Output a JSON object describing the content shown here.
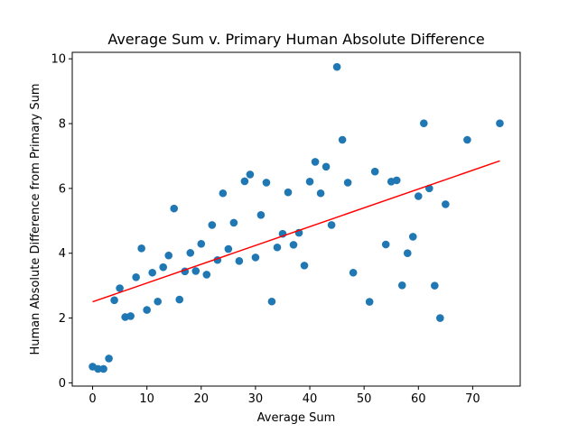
{
  "chart_data": {
    "type": "scatter",
    "title": "Average Sum v. Primary Human Absolute Difference",
    "xlabel": "Average Sum",
    "ylabel": "Human Absolute Difference from Primary Sum",
    "xlim": [
      -3.75,
      78.75
    ],
    "ylim": [
      -0.1,
      10.2
    ],
    "xticks": [
      0,
      10,
      20,
      30,
      40,
      50,
      60,
      70
    ],
    "yticks": [
      0,
      2,
      4,
      6,
      8,
      10
    ],
    "grid": false,
    "legend": "none",
    "series": [
      {
        "color": "#1f77b4",
        "points": [
          [
            0,
            0.5
          ],
          [
            1,
            0.43
          ],
          [
            2,
            0.43
          ],
          [
            3,
            0.75
          ],
          [
            4,
            2.55
          ],
          [
            5,
            2.92
          ],
          [
            6,
            2.03
          ],
          [
            7,
            2.06
          ],
          [
            8,
            3.26
          ],
          [
            9,
            4.15
          ],
          [
            10,
            2.25
          ],
          [
            11,
            3.4
          ],
          [
            12,
            2.51
          ],
          [
            13,
            3.57
          ],
          [
            14,
            3.93
          ],
          [
            15,
            5.38
          ],
          [
            16,
            2.57
          ],
          [
            17,
            3.44
          ],
          [
            18,
            4.01
          ],
          [
            19,
            3.45
          ],
          [
            20,
            4.29
          ],
          [
            21,
            3.34
          ],
          [
            22,
            4.87
          ],
          [
            23,
            3.79
          ],
          [
            24,
            5.85
          ],
          [
            25,
            4.13
          ],
          [
            26,
            4.94
          ],
          [
            27,
            3.76
          ],
          [
            28,
            6.22
          ],
          [
            29,
            6.43
          ],
          [
            30,
            3.87
          ],
          [
            31,
            5.18
          ],
          [
            32,
            6.18
          ],
          [
            33,
            2.51
          ],
          [
            34,
            4.18
          ],
          [
            35,
            4.6
          ],
          [
            36,
            5.88
          ],
          [
            37,
            4.26
          ],
          [
            38,
            4.63
          ],
          [
            39,
            3.62
          ],
          [
            40,
            6.21
          ],
          [
            41,
            6.82
          ],
          [
            42,
            5.85
          ],
          [
            43,
            6.67
          ],
          [
            44,
            4.87
          ],
          [
            45,
            9.75
          ],
          [
            46,
            7.5
          ],
          [
            47,
            6.18
          ],
          [
            48,
            3.4
          ],
          [
            51,
            2.5
          ],
          [
            52,
            6.52
          ],
          [
            54,
            4.27
          ],
          [
            55,
            6.21
          ],
          [
            56,
            6.25
          ],
          [
            57,
            3.01
          ],
          [
            58,
            4.0
          ],
          [
            59,
            4.51
          ],
          [
            60,
            5.76
          ],
          [
            61,
            8.01
          ],
          [
            62,
            6.0
          ],
          [
            63,
            3.0
          ],
          [
            64,
            2.0
          ],
          [
            65,
            5.51
          ],
          [
            69,
            7.5
          ],
          [
            75,
            8.01
          ]
        ]
      }
    ],
    "fit_line": {
      "color": "#ff0000",
      "points": [
        [
          0,
          2.5
        ],
        [
          75,
          6.85
        ]
      ]
    }
  }
}
